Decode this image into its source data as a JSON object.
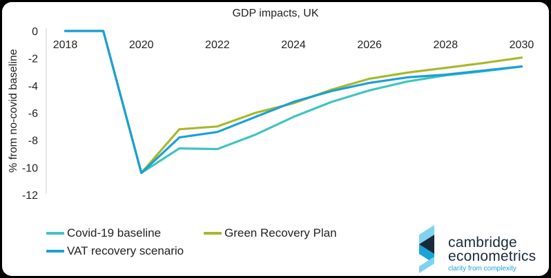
{
  "chart_data": {
    "type": "line",
    "title": "GDP impacts, UK",
    "xlabel": "",
    "ylabel": "% from no-covid baseline",
    "xlim": [
      2017.5,
      2030.5
    ],
    "ylim": [
      -12,
      0
    ],
    "x_ticks": [
      2018,
      2020,
      2022,
      2024,
      2026,
      2028,
      2030
    ],
    "y_ticks": [
      0,
      -2,
      -4,
      -6,
      -8,
      -10,
      -12
    ],
    "grid": false,
    "legend_position": "bottom-left",
    "x": [
      2018,
      2019,
      2020,
      2021,
      2022,
      2023,
      2024,
      2025,
      2026,
      2027,
      2028,
      2029,
      2030
    ],
    "series": [
      {
        "name": "Covid-19 baseline",
        "color": "#3fc4c0",
        "values": [
          0,
          0,
          -10.4,
          -8.6,
          -8.65,
          -7.6,
          -6.3,
          -5.2,
          -4.35,
          -3.7,
          -3.25,
          -2.95,
          -2.6
        ]
      },
      {
        "name": "Green Recovery Plan",
        "color": "#a8b82a",
        "values": [
          0,
          0,
          -10.4,
          -7.2,
          -7.0,
          -6.0,
          -5.3,
          -4.3,
          -3.5,
          -3.05,
          -2.7,
          -2.35,
          -1.95
        ]
      },
      {
        "name": "VAT recovery scenario",
        "color": "#1aa0d8",
        "values": [
          0,
          0,
          -10.4,
          -7.8,
          -7.4,
          -6.3,
          -5.2,
          -4.4,
          -3.8,
          -3.4,
          -3.2,
          -2.9,
          -2.6
        ]
      }
    ]
  },
  "logo": {
    "line1": "cambridge",
    "line2": "econometrics",
    "tagline": "clarity from complexity",
    "colors": {
      "dark": "#1a2a3a",
      "accent": "#19a3d8",
      "light": "#7fd3ee"
    }
  }
}
